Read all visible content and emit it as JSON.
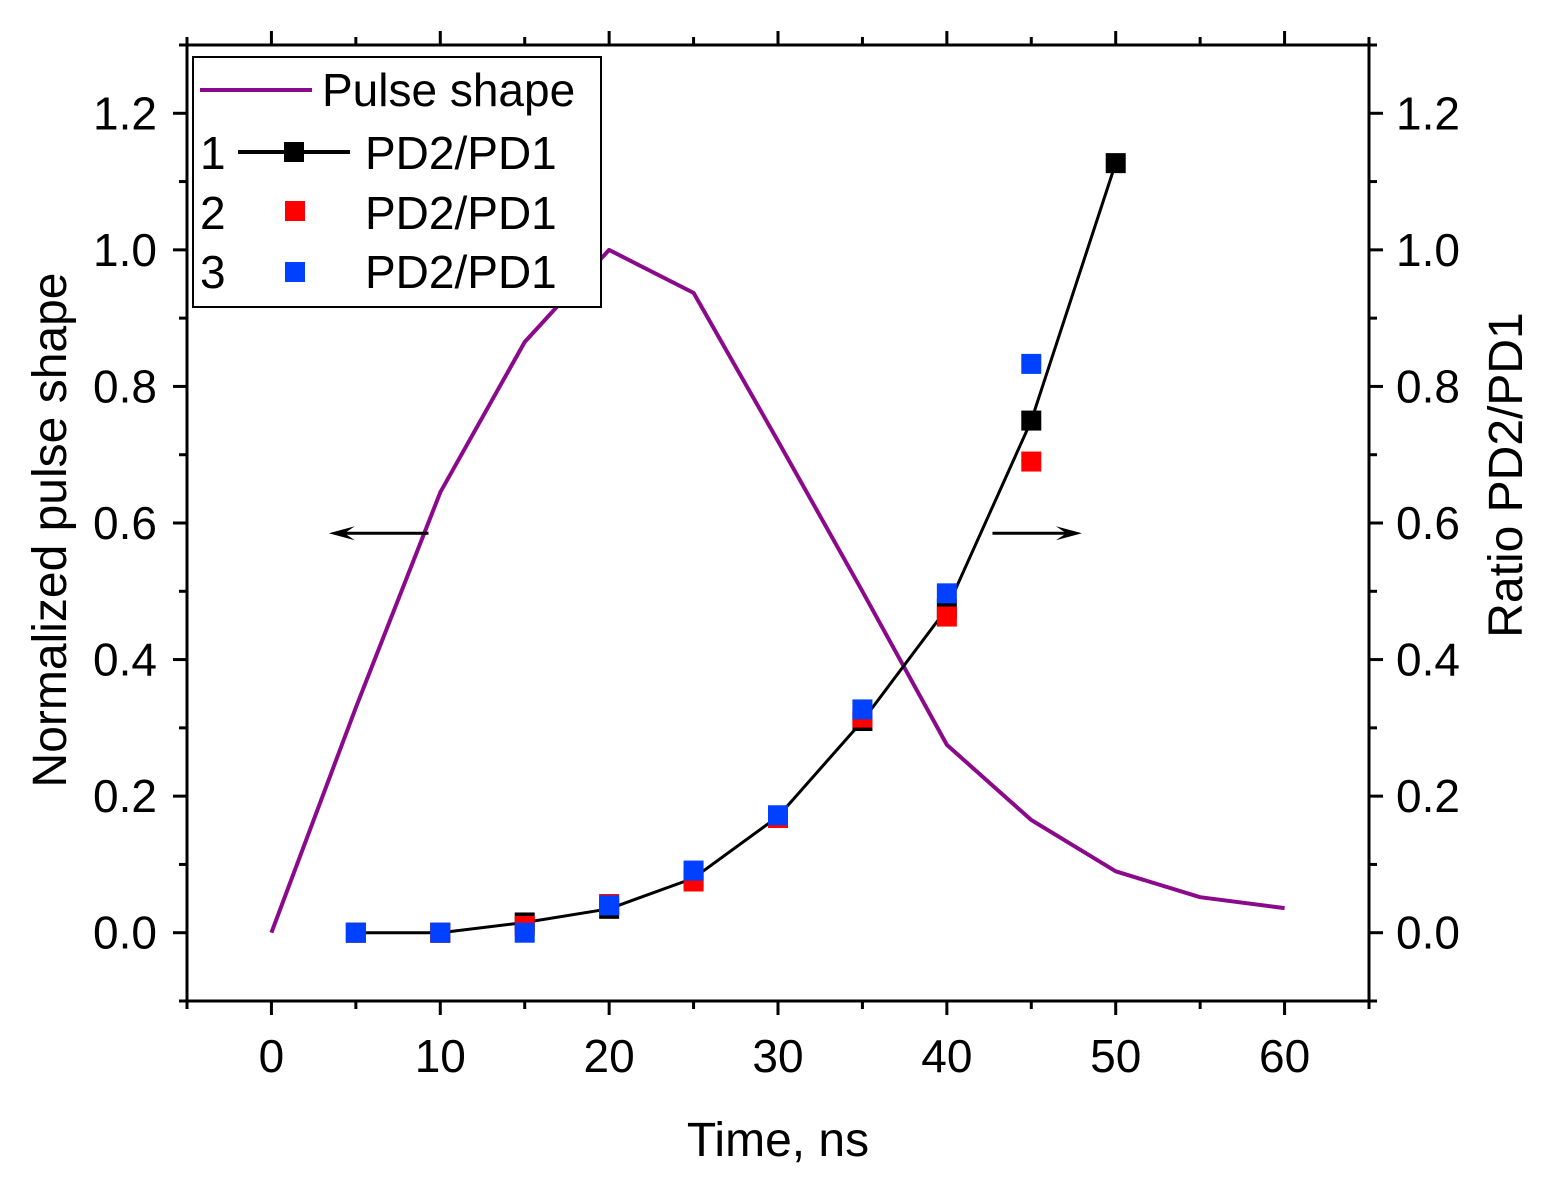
{
  "chart_data": {
    "type": "line",
    "title": "",
    "xlabel": "Time, ns",
    "ylabel_left": "Normalized pulse shape",
    "ylabel_right": "Ratio PD2/PD1",
    "xlim": [
      -5,
      65
    ],
    "ylim_left": [
      -0.1,
      1.3
    ],
    "ylim_right": [
      -0.1,
      1.3
    ],
    "x_ticks": [
      "0",
      "10",
      "20",
      "30",
      "40",
      "50",
      "60"
    ],
    "y_ticks_left": [
      "0.0",
      "0.2",
      "0.4",
      "0.6",
      "0.8",
      "1.0",
      "1.2"
    ],
    "y_ticks_right": [
      "0.0",
      "0.2",
      "0.4",
      "0.6",
      "0.8",
      "1.0",
      "1.2"
    ],
    "grid": false,
    "legend_position": "top-left",
    "series": [
      {
        "name": "Pulse shape",
        "axis": "left",
        "style": "line",
        "color": "#8b0a8b",
        "x": [
          0,
          5,
          10,
          15,
          20,
          25,
          30,
          35,
          40,
          45,
          50,
          55,
          60
        ],
        "values": [
          0.0,
          0.33,
          0.645,
          0.865,
          1.0,
          0.937,
          0.72,
          0.5,
          0.275,
          0.165,
          0.09,
          0.052,
          0.036
        ]
      },
      {
        "name": "PD2/PD1",
        "legend_number": "1",
        "axis": "right",
        "style": "line+square",
        "color": "#000000",
        "x": [
          5,
          10,
          15,
          20,
          25,
          30,
          35,
          40,
          45,
          50
        ],
        "values": [
          0.0,
          0.0,
          0.015,
          0.035,
          0.08,
          0.17,
          0.31,
          0.475,
          0.75,
          1.127
        ]
      },
      {
        "name": "PD2/PD1",
        "legend_number": "2",
        "axis": "right",
        "style": "square",
        "color": "#ff0000",
        "x": [
          5,
          10,
          15,
          20,
          25,
          30,
          35,
          40,
          45
        ],
        "values": [
          0.0,
          0.0,
          0.01,
          0.042,
          0.075,
          0.168,
          0.315,
          0.463,
          0.69
        ]
      },
      {
        "name": "PD2/PD1",
        "legend_number": "3",
        "axis": "right",
        "style": "square",
        "color": "#0040ff",
        "x": [
          5,
          10,
          15,
          20,
          25,
          30,
          35,
          40,
          45
        ],
        "values": [
          0.0,
          0.0,
          0.0,
          0.04,
          0.091,
          0.172,
          0.327,
          0.497,
          0.833
        ]
      }
    ],
    "annotations": [
      {
        "type": "arrow",
        "direction": "left",
        "points_to": "left axis",
        "x_range": [
          9.3,
          3.4
        ],
        "y": 0.585
      },
      {
        "type": "arrow",
        "direction": "right",
        "points_to": "right axis",
        "x_range": [
          42.7,
          48.0
        ],
        "y": 0.585
      }
    ]
  }
}
